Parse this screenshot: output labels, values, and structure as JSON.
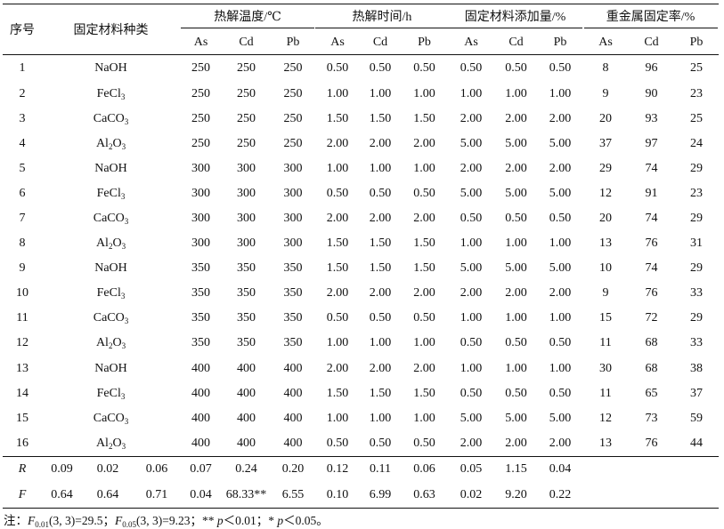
{
  "headers": {
    "seq": "序号",
    "material_type": "固定材料种类",
    "groups": [
      {
        "label": "热解温度/℃",
        "sub": [
          "As",
          "Cd",
          "Pb"
        ]
      },
      {
        "label": "热解时间/h",
        "sub": [
          "As",
          "Cd",
          "Pb"
        ]
      },
      {
        "label": "固定材料添加量/%",
        "sub": [
          "As",
          "Cd",
          "Pb"
        ]
      },
      {
        "label": "重金属固定率/%",
        "sub": [
          "As",
          "Cd",
          "Pb"
        ]
      }
    ]
  },
  "rows": [
    {
      "id": "1",
      "mat": [
        "NaOH",
        "",
        ""
      ],
      "temp": [
        "250",
        "250",
        "250"
      ],
      "time": [
        "0.50",
        "0.50",
        "0.50"
      ],
      "dose": [
        "0.50",
        "0.50",
        "0.50"
      ],
      "rate": [
        "8",
        "96",
        "25"
      ]
    },
    {
      "id": "2",
      "mat": [
        "FeCl",
        "3",
        ""
      ],
      "temp": [
        "250",
        "250",
        "250"
      ],
      "time": [
        "1.00",
        "1.00",
        "1.00"
      ],
      "dose": [
        "1.00",
        "1.00",
        "1.00"
      ],
      "rate": [
        "9",
        "90",
        "23"
      ]
    },
    {
      "id": "3",
      "mat": [
        "CaCO",
        "3",
        ""
      ],
      "temp": [
        "250",
        "250",
        "250"
      ],
      "time": [
        "1.50",
        "1.50",
        "1.50"
      ],
      "dose": [
        "2.00",
        "2.00",
        "2.00"
      ],
      "rate": [
        "20",
        "93",
        "25"
      ]
    },
    {
      "id": "4",
      "mat": [
        "Al",
        "2",
        "O",
        "3"
      ],
      "temp": [
        "250",
        "250",
        "250"
      ],
      "time": [
        "2.00",
        "2.00",
        "2.00"
      ],
      "dose": [
        "5.00",
        "5.00",
        "5.00"
      ],
      "rate": [
        "37",
        "97",
        "24"
      ]
    },
    {
      "id": "5",
      "mat": [
        "NaOH",
        "",
        ""
      ],
      "temp": [
        "300",
        "300",
        "300"
      ],
      "time": [
        "1.00",
        "1.00",
        "1.00"
      ],
      "dose": [
        "2.00",
        "2.00",
        "2.00"
      ],
      "rate": [
        "29",
        "74",
        "29"
      ]
    },
    {
      "id": "6",
      "mat": [
        "FeCl",
        "3",
        ""
      ],
      "temp": [
        "300",
        "300",
        "300"
      ],
      "time": [
        "0.50",
        "0.50",
        "0.50"
      ],
      "dose": [
        "5.00",
        "5.00",
        "5.00"
      ],
      "rate": [
        "12",
        "91",
        "23"
      ]
    },
    {
      "id": "7",
      "mat": [
        "CaCO",
        "3",
        ""
      ],
      "temp": [
        "300",
        "300",
        "300"
      ],
      "time": [
        "2.00",
        "2.00",
        "2.00"
      ],
      "dose": [
        "0.50",
        "0.50",
        "0.50"
      ],
      "rate": [
        "20",
        "74",
        "29"
      ]
    },
    {
      "id": "8",
      "mat": [
        "Al",
        "2",
        "O",
        "3"
      ],
      "temp": [
        "300",
        "300",
        "300"
      ],
      "time": [
        "1.50",
        "1.50",
        "1.50"
      ],
      "dose": [
        "1.00",
        "1.00",
        "1.00"
      ],
      "rate": [
        "13",
        "76",
        "31"
      ]
    },
    {
      "id": "9",
      "mat": [
        "NaOH",
        "",
        ""
      ],
      "temp": [
        "350",
        "350",
        "350"
      ],
      "time": [
        "1.50",
        "1.50",
        "1.50"
      ],
      "dose": [
        "5.00",
        "5.00",
        "5.00"
      ],
      "rate": [
        "10",
        "74",
        "29"
      ]
    },
    {
      "id": "10",
      "mat": [
        "FeCl",
        "3",
        ""
      ],
      "temp": [
        "350",
        "350",
        "350"
      ],
      "time": [
        "2.00",
        "2.00",
        "2.00"
      ],
      "dose": [
        "2.00",
        "2.00",
        "2.00"
      ],
      "rate": [
        "9",
        "76",
        "33"
      ]
    },
    {
      "id": "11",
      "mat": [
        "CaCO",
        "3",
        ""
      ],
      "temp": [
        "350",
        "350",
        "350"
      ],
      "time": [
        "0.50",
        "0.50",
        "0.50"
      ],
      "dose": [
        "1.00",
        "1.00",
        "1.00"
      ],
      "rate": [
        "15",
        "72",
        "29"
      ]
    },
    {
      "id": "12",
      "mat": [
        "Al",
        "2",
        "O",
        "3"
      ],
      "temp": [
        "350",
        "350",
        "350"
      ],
      "time": [
        "1.00",
        "1.00",
        "1.00"
      ],
      "dose": [
        "0.50",
        "0.50",
        "0.50"
      ],
      "rate": [
        "11",
        "68",
        "33"
      ]
    },
    {
      "id": "13",
      "mat": [
        "NaOH",
        "",
        ""
      ],
      "temp": [
        "400",
        "400",
        "400"
      ],
      "time": [
        "2.00",
        "2.00",
        "2.00"
      ],
      "dose": [
        "1.00",
        "1.00",
        "1.00"
      ],
      "rate": [
        "30",
        "68",
        "38"
      ]
    },
    {
      "id": "14",
      "mat": [
        "FeCl",
        "3",
        ""
      ],
      "temp": [
        "400",
        "400",
        "400"
      ],
      "time": [
        "1.50",
        "1.50",
        "1.50"
      ],
      "dose": [
        "0.50",
        "0.50",
        "0.50"
      ],
      "rate": [
        "11",
        "65",
        "37"
      ]
    },
    {
      "id": "15",
      "mat": [
        "CaCO",
        "3",
        ""
      ],
      "temp": [
        "400",
        "400",
        "400"
      ],
      "time": [
        "1.00",
        "1.00",
        "1.00"
      ],
      "dose": [
        "5.00",
        "5.00",
        "5.00"
      ],
      "rate": [
        "12",
        "73",
        "59"
      ]
    },
    {
      "id": "16",
      "mat": [
        "Al",
        "2",
        "O",
        "3"
      ],
      "temp": [
        "400",
        "400",
        "400"
      ],
      "time": [
        "0.50",
        "0.50",
        "0.50"
      ],
      "dose": [
        "2.00",
        "2.00",
        "2.00"
      ],
      "rate": [
        "13",
        "76",
        "44"
      ]
    }
  ],
  "stats": [
    {
      "label": "R",
      "vals": [
        "0.09",
        "0.02",
        "0.06",
        "0.07",
        "0.24",
        "0.20",
        "0.12",
        "0.11",
        "0.06",
        "0.05",
        "1.15",
        "0.04"
      ]
    },
    {
      "label": "F",
      "vals": [
        "0.64",
        "0.64",
        "0.71",
        "0.04",
        "68.33**",
        "6.55",
        "0.10",
        "6.99",
        "0.63",
        "0.02",
        "9.20",
        "0.22"
      ]
    }
  ],
  "note": {
    "prefix": "注：",
    "f1_name": "F",
    "f1_sub": "0.01",
    "f1_rest": "(3, 3)=29.5；",
    "f2_name": "F",
    "f2_sub": "0.05",
    "f2_rest": "(3, 3)=9.23；** ",
    "p1": "p",
    "p1_rest": "＜0.01；* ",
    "p2": "p",
    "p2_rest": "＜0.05。"
  }
}
